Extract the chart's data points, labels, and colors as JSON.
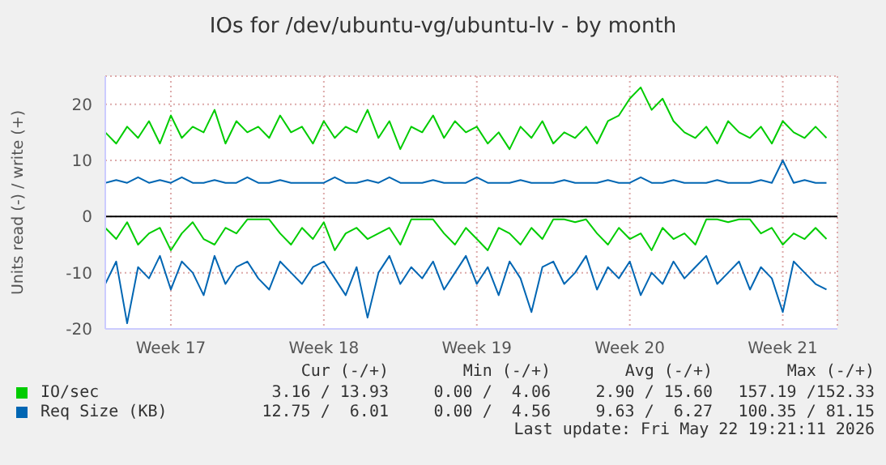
{
  "chart_data": {
    "type": "line",
    "title": "IOs for /dev/ubuntu-vg/ubuntu-lv - by month",
    "ylabel": "Units read (-) / write (+)",
    "categories": [
      null,
      null,
      null,
      null,
      null,
      null,
      "Week 17",
      null,
      null,
      null,
      null,
      null,
      null,
      null,
      null,
      null,
      null,
      null,
      null,
      null,
      "Week 18",
      null,
      null,
      null,
      null,
      null,
      null,
      null,
      null,
      null,
      null,
      null,
      null,
      null,
      "Week 19",
      null,
      null,
      null,
      null,
      null,
      null,
      null,
      null,
      null,
      null,
      null,
      null,
      null,
      "Week 20",
      null,
      null,
      null,
      null,
      null,
      null,
      null,
      null,
      null,
      null,
      null,
      null,
      null,
      "Week 21",
      null,
      null,
      null,
      null
    ],
    "ylim": [
      -20,
      25
    ],
    "yticks": [
      -20,
      -10,
      0,
      10,
      20
    ],
    "grid": true,
    "legend": "bottom",
    "ref_lines": [
      {
        "axis": "y",
        "value": 0,
        "color": "#000000"
      }
    ],
    "series": [
      {
        "name": "IO/sec",
        "color": "#00cc00",
        "values": [
          15,
          13,
          16,
          14,
          17,
          13,
          18,
          14,
          16,
          15,
          19,
          13,
          17,
          15,
          16,
          14,
          18,
          15,
          16,
          13,
          17,
          14,
          16,
          15,
          19,
          14,
          17,
          12,
          16,
          15,
          18,
          14,
          17,
          15,
          16,
          13,
          15,
          12,
          16,
          14,
          17,
          13,
          15,
          14,
          16,
          13,
          17,
          18,
          21,
          23,
          19,
          21,
          17,
          15,
          14,
          16,
          13,
          17,
          15,
          14,
          16,
          13,
          17,
          15,
          14,
          16,
          14
        ]
      },
      {
        "name": "Req Size (KB)",
        "color": "#0066b3",
        "values": [
          6,
          6.5,
          6,
          7,
          6,
          6.5,
          6,
          7,
          6,
          6,
          6.5,
          6,
          6,
          7,
          6,
          6,
          6.5,
          6,
          6,
          6,
          6,
          7,
          6,
          6,
          6.5,
          6,
          7,
          6,
          6,
          6,
          6.5,
          6,
          6,
          6,
          7,
          6,
          6,
          6,
          6.5,
          6,
          6,
          6,
          6.5,
          6,
          6,
          6,
          6.5,
          6,
          6,
          7,
          6,
          6,
          6.5,
          6,
          6,
          6,
          6.5,
          6,
          6,
          6,
          6.5,
          6,
          10,
          6,
          6.5,
          6,
          6
        ]
      },
      {
        "color": "#00cc00",
        "values": [
          -2,
          -4,
          -1,
          -5,
          -3,
          -2,
          -6,
          -3,
          -1,
          -4,
          -5,
          -2,
          -3,
          -0.5,
          -0.5,
          -0.5,
          -3,
          -5,
          -2,
          -4,
          -1,
          -6,
          -3,
          -2,
          -4,
          -3,
          -2,
          -5,
          -0.5,
          -0.5,
          -0.5,
          -3,
          -5,
          -2,
          -4,
          -6,
          -2,
          -3,
          -5,
          -2,
          -4,
          -0.5,
          -0.5,
          -1,
          -0.5,
          -3,
          -5,
          -2,
          -4,
          -3,
          -6,
          -2,
          -4,
          -3,
          -5,
          -0.5,
          -0.5,
          -1,
          -0.5,
          -0.5,
          -3,
          -2,
          -5,
          -3,
          -4,
          -2,
          -4
        ]
      },
      {
        "color": "#0066b3",
        "values": [
          -12,
          -8,
          -19,
          -9,
          -11,
          -7,
          -13,
          -8,
          -10,
          -14,
          -7,
          -12,
          -9,
          -8,
          -11,
          -13,
          -8,
          -10,
          -12,
          -9,
          -8,
          -11,
          -14,
          -9,
          -18,
          -10,
          -7,
          -12,
          -9,
          -11,
          -8,
          -13,
          -10,
          -7,
          -12,
          -9,
          -14,
          -8,
          -11,
          -17,
          -9,
          -8,
          -12,
          -10,
          -7,
          -13,
          -9,
          -11,
          -8,
          -14,
          -10,
          -12,
          -8,
          -11,
          -9,
          -7,
          -12,
          -10,
          -8,
          -13,
          -9,
          -11,
          -17,
          -8,
          -10,
          -12,
          -13
        ]
      }
    ],
    "annotations": [
      "Cur (-/+)",
      "Min (-/+)",
      "Avg (-/+)",
      "Max (-/+)",
      "3.16 / 13.93",
      "0.00 /  4.06",
      "2.90 / 15.60",
      "157.19 /152.33",
      "12.75 /  6.01",
      "0.00 /  4.56",
      "9.63 /  6.27",
      "100.35 / 81.15",
      "Last update: Fri May 22 19:21:11 2026"
    ]
  }
}
